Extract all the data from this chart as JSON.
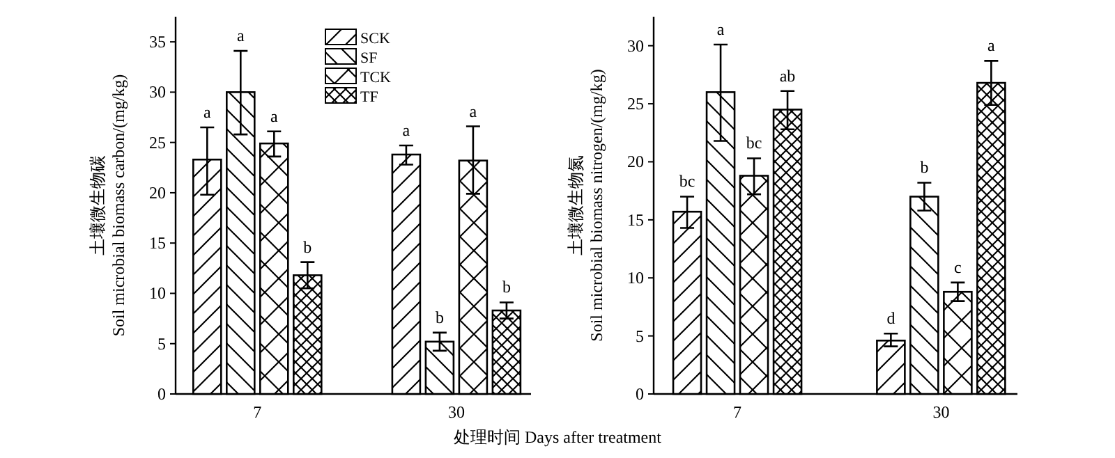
{
  "chart_data": [
    {
      "type": "bar",
      "categories": [
        "7",
        "30"
      ],
      "xlabel": "处理时间 Days after treatment",
      "ylabel": "土壤微生物碳 Soil microbial biomass carbon/(mg/kg)",
      "ylim": [
        0,
        37.5
      ],
      "yticks": [
        0,
        5,
        10,
        15,
        20,
        25,
        30,
        35
      ],
      "legend": "top",
      "grid": false,
      "series": [
        {
          "name": "SCK",
          "color": "#000000",
          "values": [
            23.3,
            23.8
          ],
          "errors": [
            [
              19.8,
              26.5
            ],
            [
              22.8,
              24.7
            ]
          ]
        },
        {
          "name": "SF",
          "color": "#000000",
          "values": [
            30.0,
            5.2
          ],
          "errors": [
            [
              25.8,
              34.1
            ],
            [
              4.3,
              6.1
            ]
          ]
        },
        {
          "name": "TCK",
          "color": "#000000",
          "values": [
            24.9,
            23.2
          ],
          "errors": [
            [
              23.6,
              26.1
            ],
            [
              19.9,
              26.6
            ]
          ]
        },
        {
          "name": "TF",
          "color": "#000000",
          "values": [
            11.8,
            8.3
          ],
          "errors": [
            [
              10.5,
              13.1
            ],
            [
              7.5,
              9.1
            ]
          ]
        }
      ],
      "annotations": [
        "a",
        "a",
        "a",
        "b",
        "a",
        "b",
        "a",
        "b"
      ]
    },
    {
      "type": "bar",
      "categories": [
        "7",
        "30"
      ],
      "ylabel": "土壤微生物氮 Soil microbial biomass nitrogen/(mg/kg)",
      "ylim": [
        0,
        32.5
      ],
      "yticks": [
        0,
        5,
        10,
        15,
        20,
        25,
        30
      ],
      "grid": false,
      "series": [
        {
          "color": "#000000",
          "values": [
            15.7,
            4.6
          ],
          "errors": [
            [
              14.3,
              17.0
            ],
            [
              4.1,
              5.2
            ]
          ]
        },
        {
          "color": "#000000",
          "values": [
            26.0,
            17.0
          ],
          "errors": [
            [
              21.8,
              30.1
            ],
            [
              15.8,
              18.2
            ]
          ]
        },
        {
          "color": "#000000",
          "values": [
            18.8,
            8.8
          ],
          "errors": [
            [
              17.2,
              20.3
            ],
            [
              8.0,
              9.6
            ]
          ]
        },
        {
          "color": "#000000",
          "values": [
            24.5,
            26.8
          ],
          "errors": [
            [
              22.8,
              26.1
            ],
            [
              24.9,
              28.7
            ]
          ]
        }
      ],
      "annotations": [
        "bc",
        "a",
        "bc",
        "ab",
        "d",
        "b",
        "c",
        "a"
      ]
    }
  ]
}
